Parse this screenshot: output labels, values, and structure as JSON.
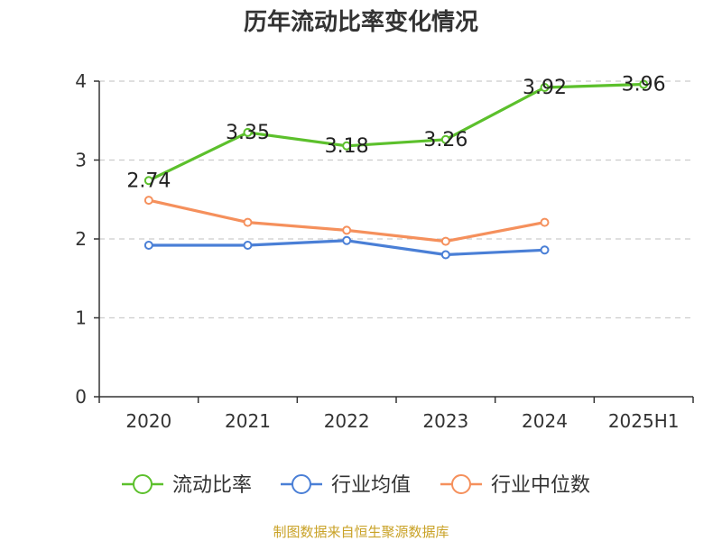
{
  "chart_data": {
    "type": "line",
    "title": "历年流动比率变化情况",
    "categories": [
      "2020",
      "2021",
      "2022",
      "2023",
      "2024",
      "2025H1"
    ],
    "ylim": [
      0,
      4
    ],
    "yticks": [
      "0",
      "1",
      "2",
      "3",
      "4"
    ],
    "grid": true,
    "legend_position": "bottom",
    "series": [
      {
        "name": "流动比率",
        "color": "#5cc02c",
        "values": [
          2.74,
          3.35,
          3.18,
          3.26,
          3.92,
          3.96
        ],
        "labels": [
          "2.74",
          "3.35",
          "3.18",
          "3.26",
          "3.92",
          "3.96"
        ]
      },
      {
        "name": "行业均值",
        "color": "#4a7fd6",
        "values": [
          1.92,
          1.92,
          1.98,
          1.8,
          1.86,
          null
        ]
      },
      {
        "name": "行业中位数",
        "color": "#f5905c",
        "values": [
          2.49,
          2.21,
          2.11,
          1.97,
          2.21,
          null
        ]
      }
    ]
  },
  "source_note": "制图数据来自恒生聚源数据库"
}
